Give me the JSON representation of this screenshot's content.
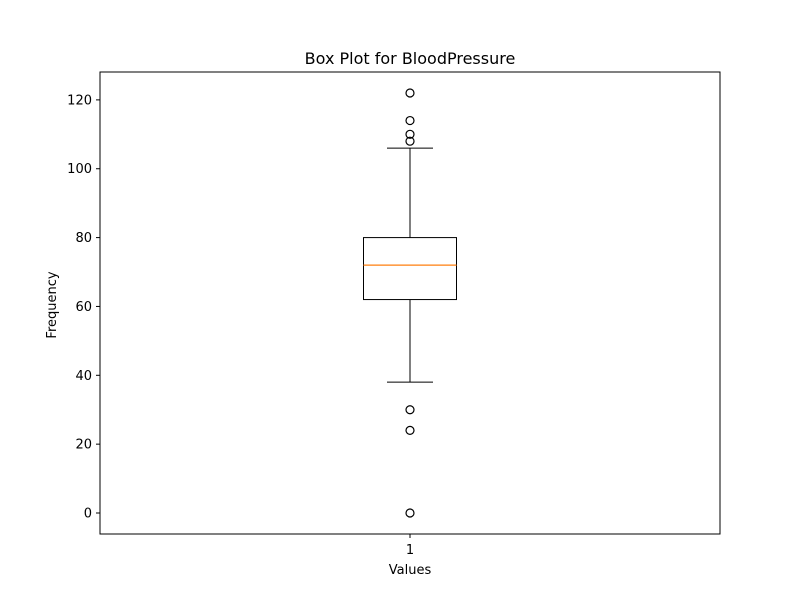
{
  "chart_data": {
    "type": "box",
    "title": "Box Plot for BloodPressure",
    "xlabel": "Values",
    "ylabel": "Frequency",
    "ylim": [
      -6.1,
      128.1
    ],
    "y_ticks": [
      0,
      20,
      40,
      60,
      80,
      100,
      120
    ],
    "x_categories": [
      "1"
    ],
    "boxes": [
      {
        "name": "1",
        "whisker_low": 38,
        "q1": 62,
        "median": 72,
        "q3": 80,
        "whisker_high": 106,
        "outliers": [
          0,
          24,
          30,
          108,
          110,
          114,
          122
        ]
      }
    ],
    "colors": {
      "box": "#000000",
      "median": "#ff7f0e",
      "outlier": "#000000"
    },
    "grid": false
  }
}
